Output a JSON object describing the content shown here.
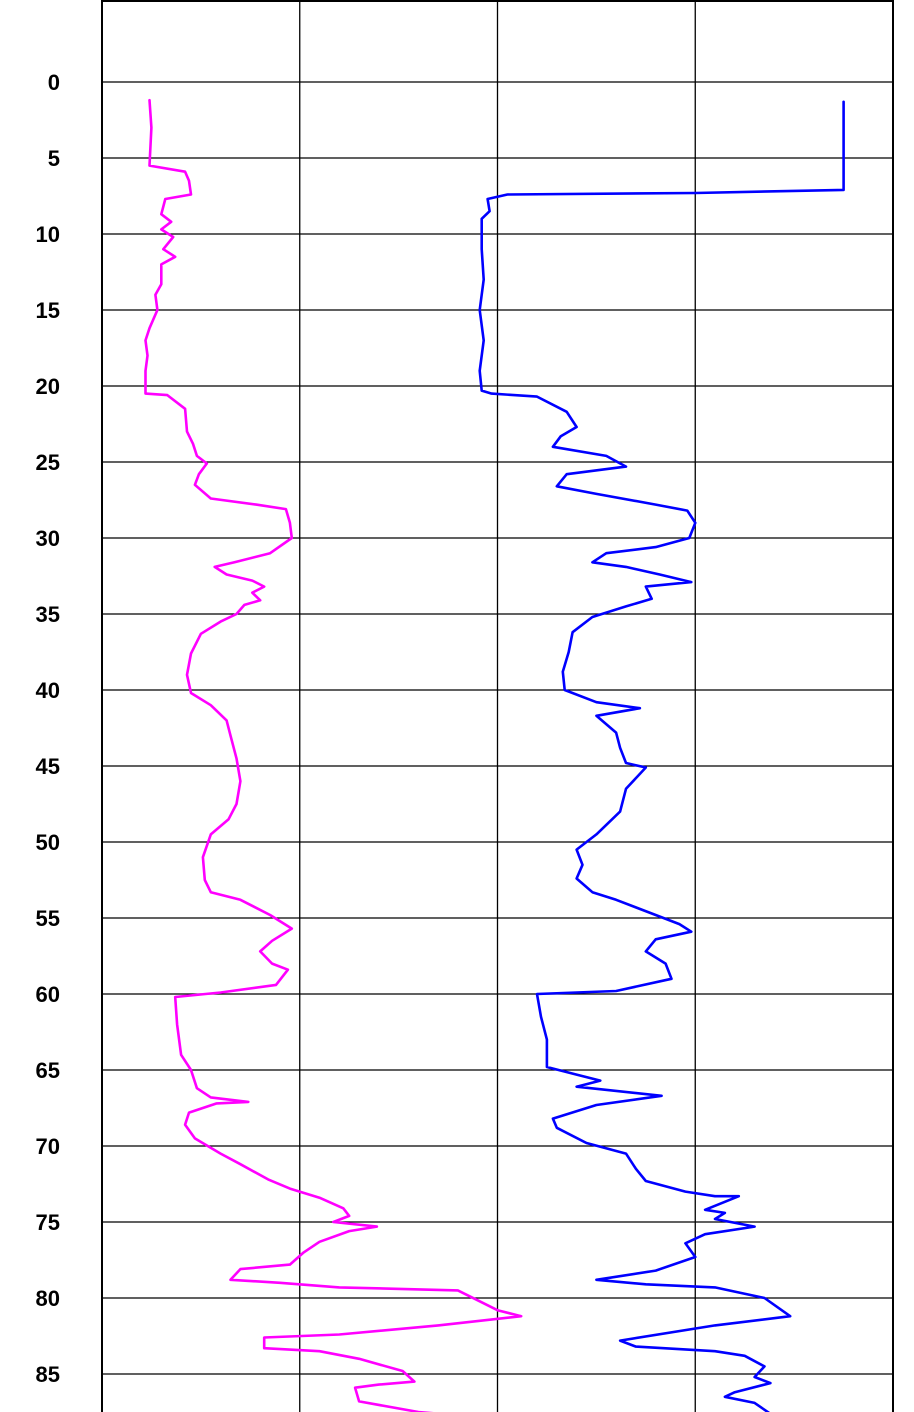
{
  "chart_data": {
    "type": "line",
    "title": "",
    "xlabel": "",
    "ylabel": "",
    "y_axis": {
      "ticks": [
        "0",
        "5",
        "10",
        "15",
        "20",
        "25",
        "30",
        "35",
        "40",
        "45",
        "50",
        "55",
        "60",
        "65",
        "70",
        "75",
        "80",
        "85"
      ],
      "range": [
        -5,
        88
      ],
      "inverted": true
    },
    "x_axis": {
      "range": [
        0,
        4
      ],
      "tick_labels": [],
      "gridlines": [
        1,
        2,
        3
      ]
    },
    "grid": true,
    "legend": "none",
    "series": [
      {
        "color": "#ff00ff",
        "points": [
          [
            0.24,
            1.2
          ],
          [
            0.25,
            3
          ],
          [
            0.24,
            5.5
          ],
          [
            0.42,
            5.9
          ],
          [
            0.44,
            6.5
          ],
          [
            0.45,
            7.4
          ],
          [
            0.32,
            7.7
          ],
          [
            0.3,
            8.7
          ],
          [
            0.35,
            9.2
          ],
          [
            0.3,
            9.7
          ],
          [
            0.36,
            10.2
          ],
          [
            0.31,
            11
          ],
          [
            0.37,
            11.5
          ],
          [
            0.3,
            12
          ],
          [
            0.3,
            13.3
          ],
          [
            0.27,
            14
          ],
          [
            0.28,
            15
          ],
          [
            0.24,
            16.2
          ],
          [
            0.22,
            17
          ],
          [
            0.23,
            18
          ],
          [
            0.22,
            19
          ],
          [
            0.22,
            20.5
          ],
          [
            0.33,
            20.6
          ],
          [
            0.42,
            21.5
          ],
          [
            0.43,
            23
          ],
          [
            0.46,
            23.8
          ],
          [
            0.48,
            24.6
          ],
          [
            0.53,
            25.1
          ],
          [
            0.49,
            25.8
          ],
          [
            0.47,
            26.5
          ],
          [
            0.55,
            27.4
          ],
          [
            0.78,
            27.8
          ],
          [
            0.93,
            28.1
          ],
          [
            0.95,
            29
          ],
          [
            0.96,
            30
          ],
          [
            0.85,
            31
          ],
          [
            0.67,
            31.6
          ],
          [
            0.57,
            31.9
          ],
          [
            0.63,
            32.4
          ],
          [
            0.76,
            32.8
          ],
          [
            0.82,
            33.2
          ],
          [
            0.76,
            33.6
          ],
          [
            0.8,
            34.1
          ],
          [
            0.72,
            34.4
          ],
          [
            0.68,
            35
          ],
          [
            0.6,
            35.5
          ],
          [
            0.5,
            36.3
          ],
          [
            0.45,
            37.6
          ],
          [
            0.43,
            39
          ],
          [
            0.45,
            40.2
          ],
          [
            0.55,
            41
          ],
          [
            0.63,
            42
          ],
          [
            0.65,
            43
          ],
          [
            0.68,
            44.5
          ],
          [
            0.7,
            46
          ],
          [
            0.68,
            47.5
          ],
          [
            0.64,
            48.5
          ],
          [
            0.55,
            49.5
          ],
          [
            0.51,
            51
          ],
          [
            0.52,
            52.5
          ],
          [
            0.55,
            53.3
          ],
          [
            0.7,
            53.8
          ],
          [
            0.85,
            54.8
          ],
          [
            0.96,
            55.7
          ],
          [
            0.86,
            56.5
          ],
          [
            0.8,
            57.2
          ],
          [
            0.86,
            58
          ],
          [
            0.94,
            58.4
          ],
          [
            0.88,
            59.4
          ],
          [
            0.6,
            59.9
          ],
          [
            0.37,
            60.2
          ],
          [
            0.38,
            62
          ],
          [
            0.4,
            64
          ],
          [
            0.45,
            65
          ],
          [
            0.48,
            66.2
          ],
          [
            0.55,
            66.8
          ],
          [
            0.74,
            67.1
          ],
          [
            0.58,
            67.2
          ],
          [
            0.44,
            67.8
          ],
          [
            0.42,
            68.6
          ],
          [
            0.47,
            69.5
          ],
          [
            0.6,
            70.5
          ],
          [
            0.7,
            71.2
          ],
          [
            0.84,
            72.2
          ],
          [
            0.95,
            72.8
          ],
          [
            1.1,
            73.4
          ],
          [
            1.22,
            74.1
          ],
          [
            1.25,
            74.6
          ],
          [
            1.17,
            75
          ],
          [
            1.39,
            75.3
          ],
          [
            1.25,
            75.6
          ],
          [
            1.1,
            76.3
          ],
          [
            1.02,
            77
          ],
          [
            0.95,
            77.8
          ],
          [
            0.7,
            78.1
          ],
          [
            0.65,
            78.8
          ],
          [
            0.9,
            79
          ],
          [
            1.2,
            79.3
          ],
          [
            1.8,
            79.5
          ],
          [
            2.0,
            80.8
          ],
          [
            2.12,
            81.2
          ],
          [
            1.7,
            81.8
          ],
          [
            1.2,
            82.4
          ],
          [
            0.82,
            82.6
          ],
          [
            0.82,
            83.3
          ],
          [
            1.1,
            83.5
          ],
          [
            1.3,
            84
          ],
          [
            1.52,
            84.8
          ],
          [
            1.58,
            85.5
          ],
          [
            1.4,
            85.7
          ],
          [
            1.28,
            85.9
          ],
          [
            1.3,
            86.8
          ],
          [
            1.6,
            87.5
          ],
          [
            2.05,
            88
          ]
        ]
      },
      {
        "color": "#0000ff",
        "points": [
          [
            3.75,
            1.3
          ],
          [
            3.75,
            7.1
          ],
          [
            3.0,
            7.3
          ],
          [
            2.05,
            7.4
          ],
          [
            1.95,
            7.7
          ],
          [
            1.96,
            8.5
          ],
          [
            1.92,
            9
          ],
          [
            1.92,
            11
          ],
          [
            1.93,
            13
          ],
          [
            1.91,
            15
          ],
          [
            1.93,
            17
          ],
          [
            1.91,
            19
          ],
          [
            1.92,
            20.3
          ],
          [
            1.97,
            20.5
          ],
          [
            2.2,
            20.7
          ],
          [
            2.35,
            21.7
          ],
          [
            2.4,
            22.7
          ],
          [
            2.32,
            23.3
          ],
          [
            2.28,
            24
          ],
          [
            2.55,
            24.6
          ],
          [
            2.65,
            25.3
          ],
          [
            2.35,
            25.8
          ],
          [
            2.3,
            26.6
          ],
          [
            2.5,
            27.1
          ],
          [
            2.8,
            27.8
          ],
          [
            2.96,
            28.2
          ],
          [
            3.0,
            29
          ],
          [
            2.97,
            30
          ],
          [
            2.8,
            30.6
          ],
          [
            2.55,
            31
          ],
          [
            2.48,
            31.6
          ],
          [
            2.65,
            31.9
          ],
          [
            2.82,
            32.4
          ],
          [
            2.98,
            32.9
          ],
          [
            2.75,
            33.2
          ],
          [
            2.78,
            34
          ],
          [
            2.65,
            34.5
          ],
          [
            2.48,
            35.2
          ],
          [
            2.38,
            36.2
          ],
          [
            2.36,
            37.5
          ],
          [
            2.33,
            38.8
          ],
          [
            2.34,
            40
          ],
          [
            2.5,
            40.8
          ],
          [
            2.72,
            41.2
          ],
          [
            2.5,
            41.7
          ],
          [
            2.6,
            42.8
          ],
          [
            2.62,
            43.8
          ],
          [
            2.65,
            44.8
          ],
          [
            2.75,
            45.1
          ],
          [
            2.65,
            46.5
          ],
          [
            2.62,
            48
          ],
          [
            2.5,
            49.5
          ],
          [
            2.4,
            50.5
          ],
          [
            2.43,
            51.5
          ],
          [
            2.4,
            52.4
          ],
          [
            2.48,
            53.3
          ],
          [
            2.6,
            53.8
          ],
          [
            2.8,
            54.8
          ],
          [
            2.92,
            55.4
          ],
          [
            2.98,
            55.9
          ],
          [
            2.8,
            56.4
          ],
          [
            2.75,
            57.2
          ],
          [
            2.85,
            58
          ],
          [
            2.88,
            59
          ],
          [
            2.6,
            59.8
          ],
          [
            2.2,
            60
          ],
          [
            2.22,
            61.5
          ],
          [
            2.25,
            63
          ],
          [
            2.25,
            64.8
          ],
          [
            2.4,
            65.3
          ],
          [
            2.52,
            65.7
          ],
          [
            2.4,
            66.1
          ],
          [
            2.83,
            66.7
          ],
          [
            2.5,
            67.3
          ],
          [
            2.28,
            68.2
          ],
          [
            2.3,
            68.8
          ],
          [
            2.45,
            69.8
          ],
          [
            2.65,
            70.5
          ],
          [
            2.7,
            71.5
          ],
          [
            2.75,
            72.3
          ],
          [
            2.95,
            73
          ],
          [
            3.1,
            73.3
          ],
          [
            3.22,
            73.3
          ],
          [
            3.05,
            74.2
          ],
          [
            3.15,
            74.4
          ],
          [
            3.1,
            74.8
          ],
          [
            3.3,
            75.3
          ],
          [
            3.05,
            75.8
          ],
          [
            2.95,
            76.4
          ],
          [
            3.0,
            77.3
          ],
          [
            2.8,
            78.2
          ],
          [
            2.5,
            78.8
          ],
          [
            2.75,
            79.1
          ],
          [
            3.1,
            79.3
          ],
          [
            3.35,
            80
          ],
          [
            3.48,
            81.2
          ],
          [
            3.1,
            81.8
          ],
          [
            2.62,
            82.8
          ],
          [
            2.7,
            83.2
          ],
          [
            3.1,
            83.5
          ],
          [
            3.25,
            83.8
          ],
          [
            3.35,
            84.5
          ],
          [
            3.3,
            85.2
          ],
          [
            3.38,
            85.6
          ],
          [
            3.2,
            86.2
          ],
          [
            3.15,
            86.5
          ],
          [
            3.3,
            86.9
          ],
          [
            3.4,
            87.8
          ],
          [
            3.45,
            88
          ]
        ]
      }
    ]
  }
}
